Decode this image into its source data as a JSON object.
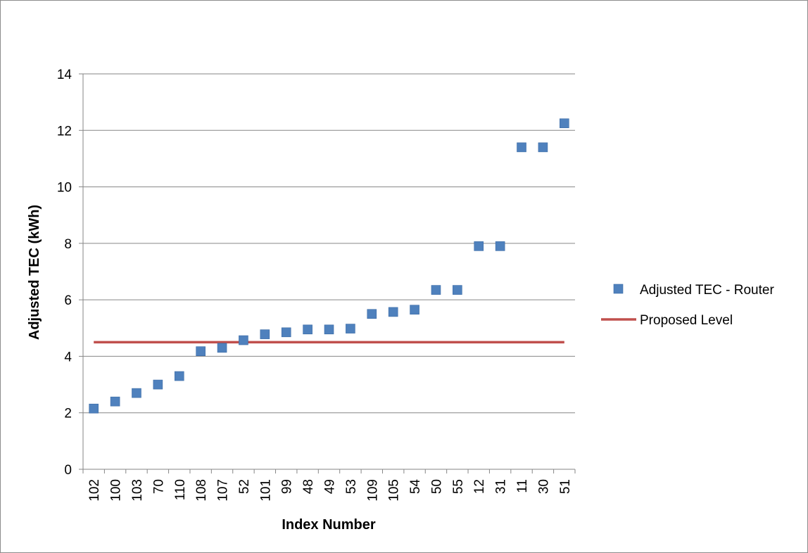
{
  "chart_data": {
    "type": "scatter",
    "title": "",
    "xlabel": "Index Number",
    "ylabel": "Adjusted TEC (kWh)",
    "ylim": [
      0,
      14
    ],
    "yticks": [
      0,
      2,
      4,
      6,
      8,
      10,
      12,
      14
    ],
    "grid": "horizontal",
    "legend_position": "right",
    "categories": [
      "102",
      "100",
      "103",
      "70",
      "110",
      "108",
      "107",
      "52",
      "101",
      "99",
      "48",
      "49",
      "53",
      "109",
      "105",
      "54",
      "50",
      "55",
      "12",
      "31",
      "11",
      "30",
      "51"
    ],
    "series": [
      {
        "name": "Adjusted TEC - Router",
        "type": "scatter",
        "marker": "square",
        "color": "#4f81bd",
        "values": [
          2.15,
          2.4,
          2.7,
          3.0,
          3.3,
          4.18,
          4.3,
          4.57,
          4.78,
          4.85,
          4.95,
          4.95,
          4.98,
          5.5,
          5.57,
          5.65,
          6.35,
          6.35,
          7.9,
          7.9,
          11.4,
          11.4,
          12.25
        ]
      },
      {
        "name": "Proposed Level",
        "type": "line",
        "color": "#c0504d",
        "constant": 4.5
      }
    ]
  }
}
